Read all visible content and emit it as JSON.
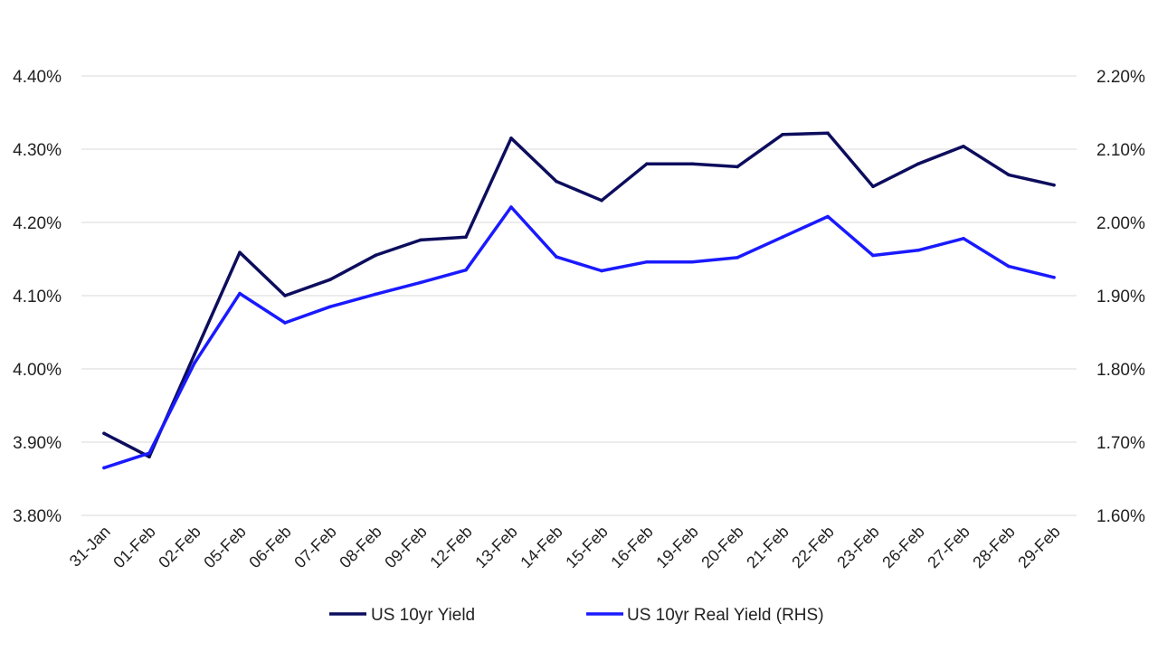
{
  "chart_data": {
    "type": "line",
    "title": "",
    "xlabel": "",
    "ylabel": "",
    "categories": [
      "31-Jan",
      "01-Feb",
      "02-Feb",
      "05-Feb",
      "06-Feb",
      "07-Feb",
      "08-Feb",
      "09-Feb",
      "12-Feb",
      "13-Feb",
      "14-Feb",
      "15-Feb",
      "16-Feb",
      "19-Feb",
      "20-Feb",
      "21-Feb",
      "22-Feb",
      "23-Feb",
      "26-Feb",
      "27-Feb",
      "28-Feb",
      "29-Feb"
    ],
    "ylim_left": [
      3.8,
      4.4
    ],
    "ylim_right": [
      1.6,
      2.2
    ],
    "yticks_left": [
      "3.80%",
      "3.90%",
      "4.00%",
      "4.10%",
      "4.20%",
      "4.30%",
      "4.40%"
    ],
    "yticks_right": [
      "1.60%",
      "1.70%",
      "1.80%",
      "1.90%",
      "2.00%",
      "2.10%",
      "2.20%"
    ],
    "grid": true,
    "legend_position": "bottom",
    "series": [
      {
        "name": "US 10yr Yield",
        "axis": "left",
        "color": "#0d0d5e",
        "values": [
          3.912,
          3.88,
          4.02,
          4.159,
          4.1,
          4.122,
          4.155,
          4.176,
          4.18,
          4.315,
          4.256,
          4.23,
          4.28,
          4.28,
          4.276,
          4.32,
          4.322,
          4.249,
          4.28,
          4.304,
          4.265,
          4.251
        ]
      },
      {
        "name": "US 10yr Real Yield (RHS)",
        "axis": "right",
        "color": "#1a1aff",
        "values": [
          1.665,
          1.685,
          1.808,
          1.903,
          1.863,
          1.885,
          1.902,
          1.918,
          1.935,
          2.021,
          1.953,
          1.934,
          1.946,
          1.946,
          1.952,
          1.98,
          2.008,
          1.955,
          1.962,
          1.978,
          1.94,
          1.925
        ]
      }
    ]
  }
}
